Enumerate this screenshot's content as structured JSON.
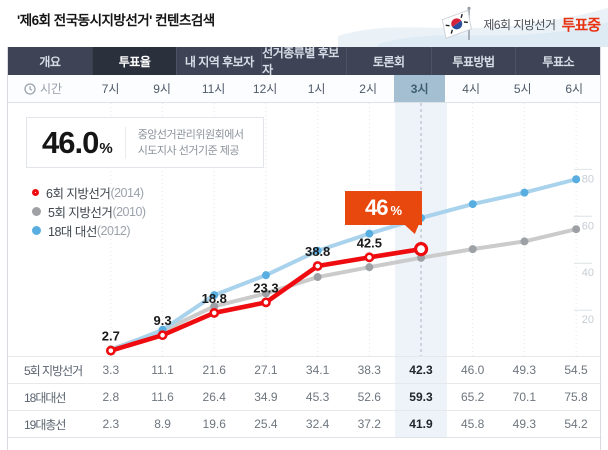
{
  "colors": {
    "accent_red": "#ee0c10",
    "badge_orange": "#e8470e",
    "status_red": "#e8320f",
    "blue_line": "#a9d3ec",
    "blue_dot": "#58aee1",
    "gray_line": "#cbcbcb",
    "gray_dot": "#9da1a5",
    "nav_bg": "#3e4456",
    "nav_selected_bg": "#2b303d",
    "time_selected_bg": "#a3bfd1",
    "highlight_band": "#edf3f8"
  },
  "header": {
    "title": "'제6회 전국동시지방선거' 컨텐츠검색",
    "flag_label": "제6회 지방선거",
    "status_label": "투표중"
  },
  "nav": {
    "tabs": [
      {
        "label": "개요",
        "selected": false
      },
      {
        "label": "투표율",
        "selected": true
      },
      {
        "label": "내 지역 후보자",
        "selected": false
      },
      {
        "label": "선거종류별 후보자",
        "selected": false
      },
      {
        "label": "토론회",
        "selected": false
      },
      {
        "label": "투표방법",
        "selected": false
      },
      {
        "label": "투표소",
        "selected": false
      }
    ]
  },
  "time_bar": {
    "label": "시간",
    "hours": [
      "7시",
      "9시",
      "11시",
      "12시",
      "1시",
      "2시",
      "3시",
      "4시",
      "5시",
      "6시"
    ],
    "selected_index": 6
  },
  "summary": {
    "value": "46.0",
    "unit": "%",
    "source_line1": "중앙선거관리위원회에서",
    "source_line2": "시도지사 선거기준 제공"
  },
  "callout": {
    "value": "46",
    "unit": "%"
  },
  "chart_data": {
    "type": "line",
    "x_categories": [
      "7시",
      "9시",
      "11시",
      "12시",
      "1시",
      "2시",
      "3시",
      "4시",
      "5시",
      "6시"
    ],
    "ylim": [
      0,
      100
    ],
    "yticks": [
      80,
      60,
      40,
      20
    ],
    "highlight_x": "3시",
    "legend_position": "top-left",
    "series": [
      {
        "name": "6회 지방선거",
        "year": "(2014)",
        "color": "#ee0c10",
        "style": "ring",
        "values": [
          2.7,
          9.3,
          18.8,
          23.3,
          38.8,
          42.5,
          46.0
        ]
      },
      {
        "name": "5회 지방선거",
        "year": "(2010)",
        "color": "#cbcbcb",
        "dot_color": "#9da1a5",
        "style": "dot",
        "values": [
          3.3,
          11.1,
          21.6,
          27.1,
          34.1,
          38.3,
          42.3,
          46.0,
          49.3,
          54.5
        ]
      },
      {
        "name": "18대 대선",
        "year": "(2012)",
        "color": "#a9d3ec",
        "dot_color": "#58aee1",
        "style": "dot",
        "values": [
          2.8,
          11.6,
          26.4,
          34.9,
          45.3,
          52.6,
          59.3,
          65.2,
          70.1,
          75.8
        ]
      }
    ]
  },
  "table": {
    "highlight_index": 6,
    "rows": [
      {
        "label": "5회 지방선거",
        "values": [
          "3.3",
          "11.1",
          "21.6",
          "27.1",
          "34.1",
          "38.3",
          "42.3",
          "46.0",
          "49.3",
          "54.5"
        ]
      },
      {
        "label": "18대대선",
        "values": [
          "2.8",
          "11.6",
          "26.4",
          "34.9",
          "45.3",
          "52.6",
          "59.3",
          "65.2",
          "70.1",
          "75.8"
        ]
      },
      {
        "label": "19대총선",
        "values": [
          "2.3",
          "8.9",
          "19.6",
          "25.4",
          "32.4",
          "37.2",
          "41.9",
          "45.8",
          "49.3",
          "54.2"
        ]
      }
    ]
  }
}
